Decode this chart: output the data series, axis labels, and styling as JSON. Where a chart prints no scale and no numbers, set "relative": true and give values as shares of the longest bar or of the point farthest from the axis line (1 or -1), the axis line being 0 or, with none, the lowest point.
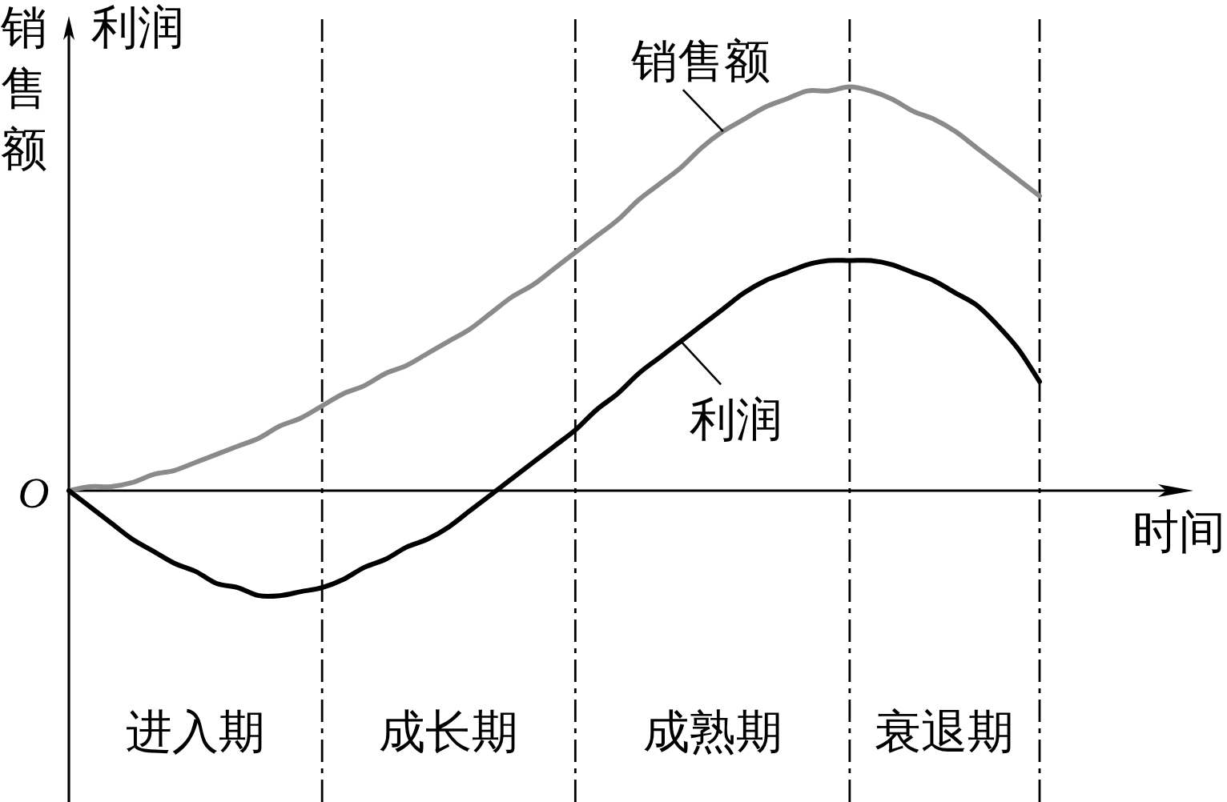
{
  "chart_data": {
    "type": "line",
    "xlabel": "时间",
    "ylabel": "销售额",
    "relative": true,
    "grid": "x",
    "categories": [
      null,
      null,
      null,
      null,
      null,
      null,
      null,
      null,
      null,
      null,
      null,
      null,
      null,
      null,
      null,
      null,
      null,
      null,
      null,
      null,
      null,
      null,
      null,
      null,
      null,
      null,
      null,
      null,
      null,
      null,
      null,
      null,
      null,
      null,
      null,
      null,
      null,
      null,
      null,
      null,
      null,
      null,
      null,
      null,
      null,
      null,
      null
    ],
    "series": [
      {
        "name": "销售额",
        "color": "#8a8a8a",
        "values": [
          0,
          0.01,
          0.01,
          0.02,
          0.04,
          0.05,
          0.07,
          0.09,
          0.11,
          0.13,
          0.16,
          0.18,
          0.21,
          0.24,
          0.26,
          0.29,
          0.31,
          0.34,
          0.37,
          0.4,
          0.44,
          0.48,
          0.51,
          0.55,
          0.59,
          0.63,
          0.67,
          0.72,
          0.76,
          0.8,
          0.85,
          0.89,
          0.92,
          0.95,
          0.97,
          0.99,
          0.99,
          1,
          0.99,
          0.97,
          0.94,
          0.92,
          0.89,
          0.85,
          0.81,
          0.77,
          0.73
        ]
      },
      {
        "name": "利润",
        "color": "#000000",
        "values": [
          0,
          -0.04,
          -0.08,
          -0.12,
          -0.15,
          -0.18,
          -0.2,
          -0.23,
          -0.24,
          -0.26,
          -0.26,
          -0.25,
          -0.24,
          -0.22,
          -0.19,
          -0.17,
          -0.14,
          -0.12,
          -0.09,
          -0.05,
          -0.01,
          0.03,
          0.07,
          0.11,
          0.15,
          0.2,
          0.24,
          0.29,
          0.33,
          0.37,
          0.41,
          0.45,
          0.49,
          0.52,
          0.54,
          0.56,
          0.57,
          0.57,
          0.57,
          0.56,
          0.54,
          0.52,
          0.49,
          0.46,
          0.41,
          0.35,
          0.27
        ]
      }
    ],
    "annotations": [
      "O",
      "利润",
      "进入期",
      "成长期",
      "成熟期",
      "衰退期"
    ]
  }
}
